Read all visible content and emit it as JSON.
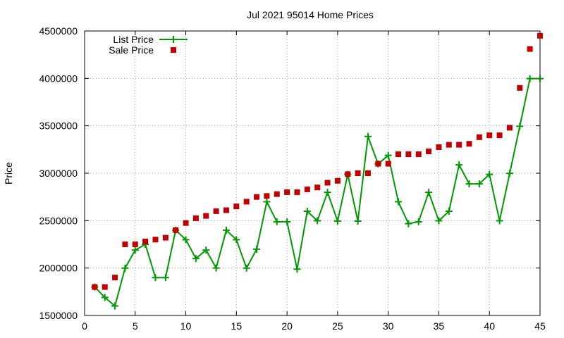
{
  "chart_data": {
    "type": "line",
    "title": "Jul 2021 95014 Home Prices",
    "xlabel": "",
    "ylabel": "Price",
    "xlim": [
      0,
      45
    ],
    "ylim": [
      1500000,
      4500000
    ],
    "x_ticks": [
      0,
      5,
      10,
      15,
      20,
      25,
      30,
      35,
      40,
      45
    ],
    "y_ticks": [
      1500000,
      2000000,
      2500000,
      3000000,
      3500000,
      4000000,
      4500000
    ],
    "grid": true,
    "legend": "top-left",
    "series": [
      {
        "name": "List Price",
        "style": "line-with-plus-markers",
        "color": "#009900",
        "x": [
          1,
          2,
          3,
          4,
          5,
          6,
          7,
          8,
          9,
          10,
          11,
          12,
          13,
          14,
          15,
          16,
          17,
          18,
          19,
          20,
          21,
          22,
          23,
          24,
          25,
          26,
          27,
          28,
          29,
          30,
          31,
          32,
          33,
          34,
          35,
          36,
          37,
          38,
          39,
          40,
          41,
          42,
          43,
          44,
          45
        ],
        "y": [
          1800000,
          1690000,
          1600000,
          1999000,
          2190000,
          2250000,
          1899000,
          1899000,
          2399000,
          2299000,
          2100000,
          2190000,
          2000000,
          2399000,
          2299000,
          1999000,
          2199000,
          2699000,
          2488000,
          2488000,
          1988000,
          2599000,
          2499000,
          2799000,
          2495000,
          2988000,
          2495000,
          3388000,
          3098000,
          3188000,
          2699000,
          2468000,
          2488000,
          2799000,
          2499000,
          2599000,
          3088000,
          2888000,
          2888000,
          2988000,
          2499000,
          2998000,
          3495000,
          3998000,
          3998000
        ]
      },
      {
        "name": "Sale Price",
        "style": "square-markers",
        "color": "#c00000",
        "x": [
          1,
          2,
          3,
          4,
          5,
          6,
          7,
          8,
          9,
          10,
          11,
          12,
          13,
          14,
          15,
          16,
          17,
          18,
          19,
          20,
          21,
          22,
          23,
          24,
          25,
          26,
          27,
          28,
          29,
          30,
          31,
          32,
          33,
          34,
          35,
          36,
          37,
          38,
          39,
          40,
          41,
          42,
          43,
          44,
          45
        ],
        "y": [
          1800000,
          1800000,
          1900000,
          2250000,
          2250000,
          2280000,
          2300000,
          2320000,
          2400000,
          2475000,
          2525000,
          2550000,
          2600000,
          2610000,
          2650000,
          2700000,
          2750000,
          2760000,
          2780000,
          2800000,
          2800000,
          2830000,
          2850000,
          2900000,
          2920000,
          2990000,
          3000000,
          3000000,
          3100000,
          3100000,
          3200000,
          3200000,
          3200000,
          3230000,
          3275000,
          3300000,
          3300000,
          3310000,
          3380000,
          3400000,
          3400000,
          3480000,
          3900000,
          4310000,
          4450000
        ]
      }
    ]
  }
}
